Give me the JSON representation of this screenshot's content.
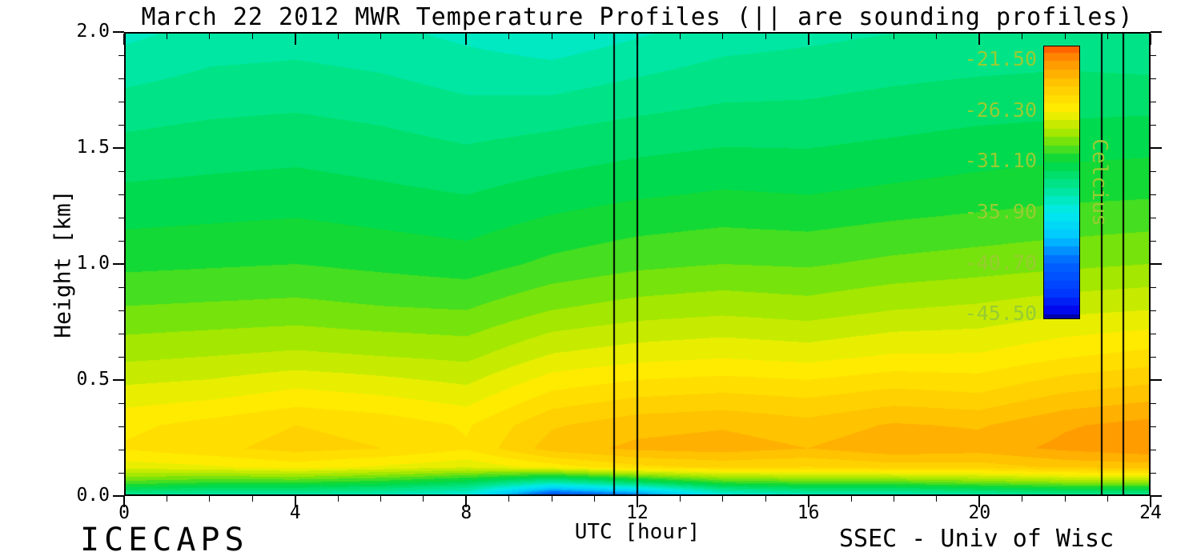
{
  "chart_data": {
    "type": "heatmap",
    "title": "March 22 2012 MWR Temperature Profiles (|| are sounding profiles)",
    "xlabel": "UTC [hour]",
    "ylabel": "Height [km]",
    "xlim": [
      0,
      24
    ],
    "ylim": [
      0.0,
      2.0
    ],
    "x_hours": [
      0,
      2,
      4,
      6,
      8,
      10,
      12,
      14,
      16,
      18,
      20,
      22,
      24
    ],
    "heights_km": [
      0.0,
      0.05,
      0.12,
      0.2,
      0.3,
      0.45,
      0.6,
      0.8,
      1.0,
      1.3,
      1.6,
      2.0
    ],
    "temperature_c": [
      [
        -33.5,
        -34.0,
        -34.0,
        -34.5,
        -35.5,
        -42.0,
        -40.0,
        -35.5,
        -34.5,
        -34.5,
        -34.0,
        -33.5,
        -33.5
      ],
      [
        -30.0,
        -30.5,
        -30.5,
        -31.0,
        -32.0,
        -34.5,
        -32.5,
        -30.5,
        -30.0,
        -30.0,
        -29.5,
        -29.0,
        -29.0
      ],
      [
        -26.8,
        -26.5,
        -26.0,
        -26.5,
        -27.0,
        -26.0,
        -25.0,
        -24.6,
        -24.8,
        -24.4,
        -24.4,
        -23.8,
        -23.6
      ],
      [
        -25.5,
        -25.0,
        -24.5,
        -24.8,
        -25.5,
        -23.6,
        -23.0,
        -22.8,
        -23.2,
        -22.6,
        -22.8,
        -22.2,
        -21.8
      ],
      [
        -25.8,
        -25.3,
        -24.8,
        -25.1,
        -25.7,
        -24.1,
        -23.5,
        -23.3,
        -23.7,
        -23.1,
        -23.3,
        -22.5,
        -22.1
      ],
      [
        -27.0,
        -26.8,
        -26.3,
        -26.6,
        -27.0,
        -25.6,
        -25.1,
        -24.9,
        -25.1,
        -24.7,
        -24.9,
        -24.1,
        -23.7
      ],
      [
        -28.2,
        -28.0,
        -27.8,
        -28.0,
        -28.2,
        -27.1,
        -26.7,
        -26.5,
        -26.7,
        -26.3,
        -26.3,
        -25.7,
        -25.3
      ],
      [
        -29.5,
        -29.4,
        -29.3,
        -29.5,
        -29.6,
        -28.8,
        -28.4,
        -28.2,
        -28.4,
        -28.0,
        -27.8,
        -27.4,
        -27.2
      ],
      [
        -30.6,
        -30.5,
        -30.4,
        -30.6,
        -30.8,
        -30.2,
        -29.8,
        -29.6,
        -29.7,
        -29.4,
        -29.2,
        -29.0,
        -28.8
      ],
      [
        -31.8,
        -31.7,
        -31.6,
        -31.8,
        -32.0,
        -31.6,
        -31.3,
        -31.1,
        -31.2,
        -31.0,
        -30.8,
        -30.6,
        -30.5
      ],
      [
        -32.9,
        -32.7,
        -32.6,
        -32.8,
        -33.1,
        -32.9,
        -32.6,
        -32.4,
        -32.4,
        -32.2,
        -32.0,
        -31.9,
        -31.8
      ],
      [
        -34.6,
        -34.1,
        -34.0,
        -34.2,
        -34.6,
        -35.0,
        -34.5,
        -34.0,
        -33.8,
        -33.6,
        -33.5,
        -33.4,
        -33.6
      ]
    ],
    "sounding_hours": [
      11.45,
      12.0,
      22.9,
      23.4
    ],
    "x_ticks": {
      "major": [
        0,
        4,
        8,
        12,
        16,
        20,
        24
      ],
      "labels": [
        "0",
        "4",
        "8",
        "12",
        "16",
        "20",
        "24"
      ],
      "minor_step": 1
    },
    "y_ticks": {
      "major": [
        0.0,
        0.5,
        1.0,
        1.5,
        2.0
      ],
      "labels": [
        "0.0",
        "0.5",
        "1.0",
        "1.5",
        "2.0"
      ],
      "minor_step": 0.1
    },
    "colorbar": {
      "label": "Celcius",
      "tick_labels": [
        "-21.50",
        "-26.30",
        "-31.10",
        "-35.90",
        "-40.70",
        "-45.50"
      ],
      "tick_values": [
        -21.5,
        -26.3,
        -31.1,
        -35.9,
        -40.7,
        -45.5
      ],
      "label_color": "#98cc32"
    },
    "colormap": {
      "tmin": -46.0,
      "tmax": -20.2,
      "stops": [
        [
          0.0,
          [
            0,
            0,
            170
          ]
        ],
        [
          0.02,
          [
            0,
            0,
            235
          ]
        ],
        [
          0.1,
          [
            0,
            60,
            255
          ]
        ],
        [
          0.205,
          [
            0,
            100,
            255
          ]
        ],
        [
          0.3,
          [
            0,
            200,
            255
          ]
        ],
        [
          0.391,
          [
            0,
            235,
            235
          ]
        ],
        [
          0.48,
          [
            0,
            230,
            150
          ]
        ],
        [
          0.578,
          [
            0,
            215,
            60
          ]
        ],
        [
          0.67,
          [
            150,
            230,
            0
          ]
        ],
        [
          0.764,
          [
            255,
            240,
            0
          ]
        ],
        [
          0.86,
          [
            255,
            200,
            0
          ]
        ],
        [
          0.95,
          [
            255,
            145,
            0
          ]
        ],
        [
          1.0,
          [
            255,
            90,
            0
          ]
        ]
      ]
    },
    "contour_step": 0.8,
    "footer_left": "ICECAPS",
    "footer_right": "SSEC - Univ of Wisc"
  }
}
